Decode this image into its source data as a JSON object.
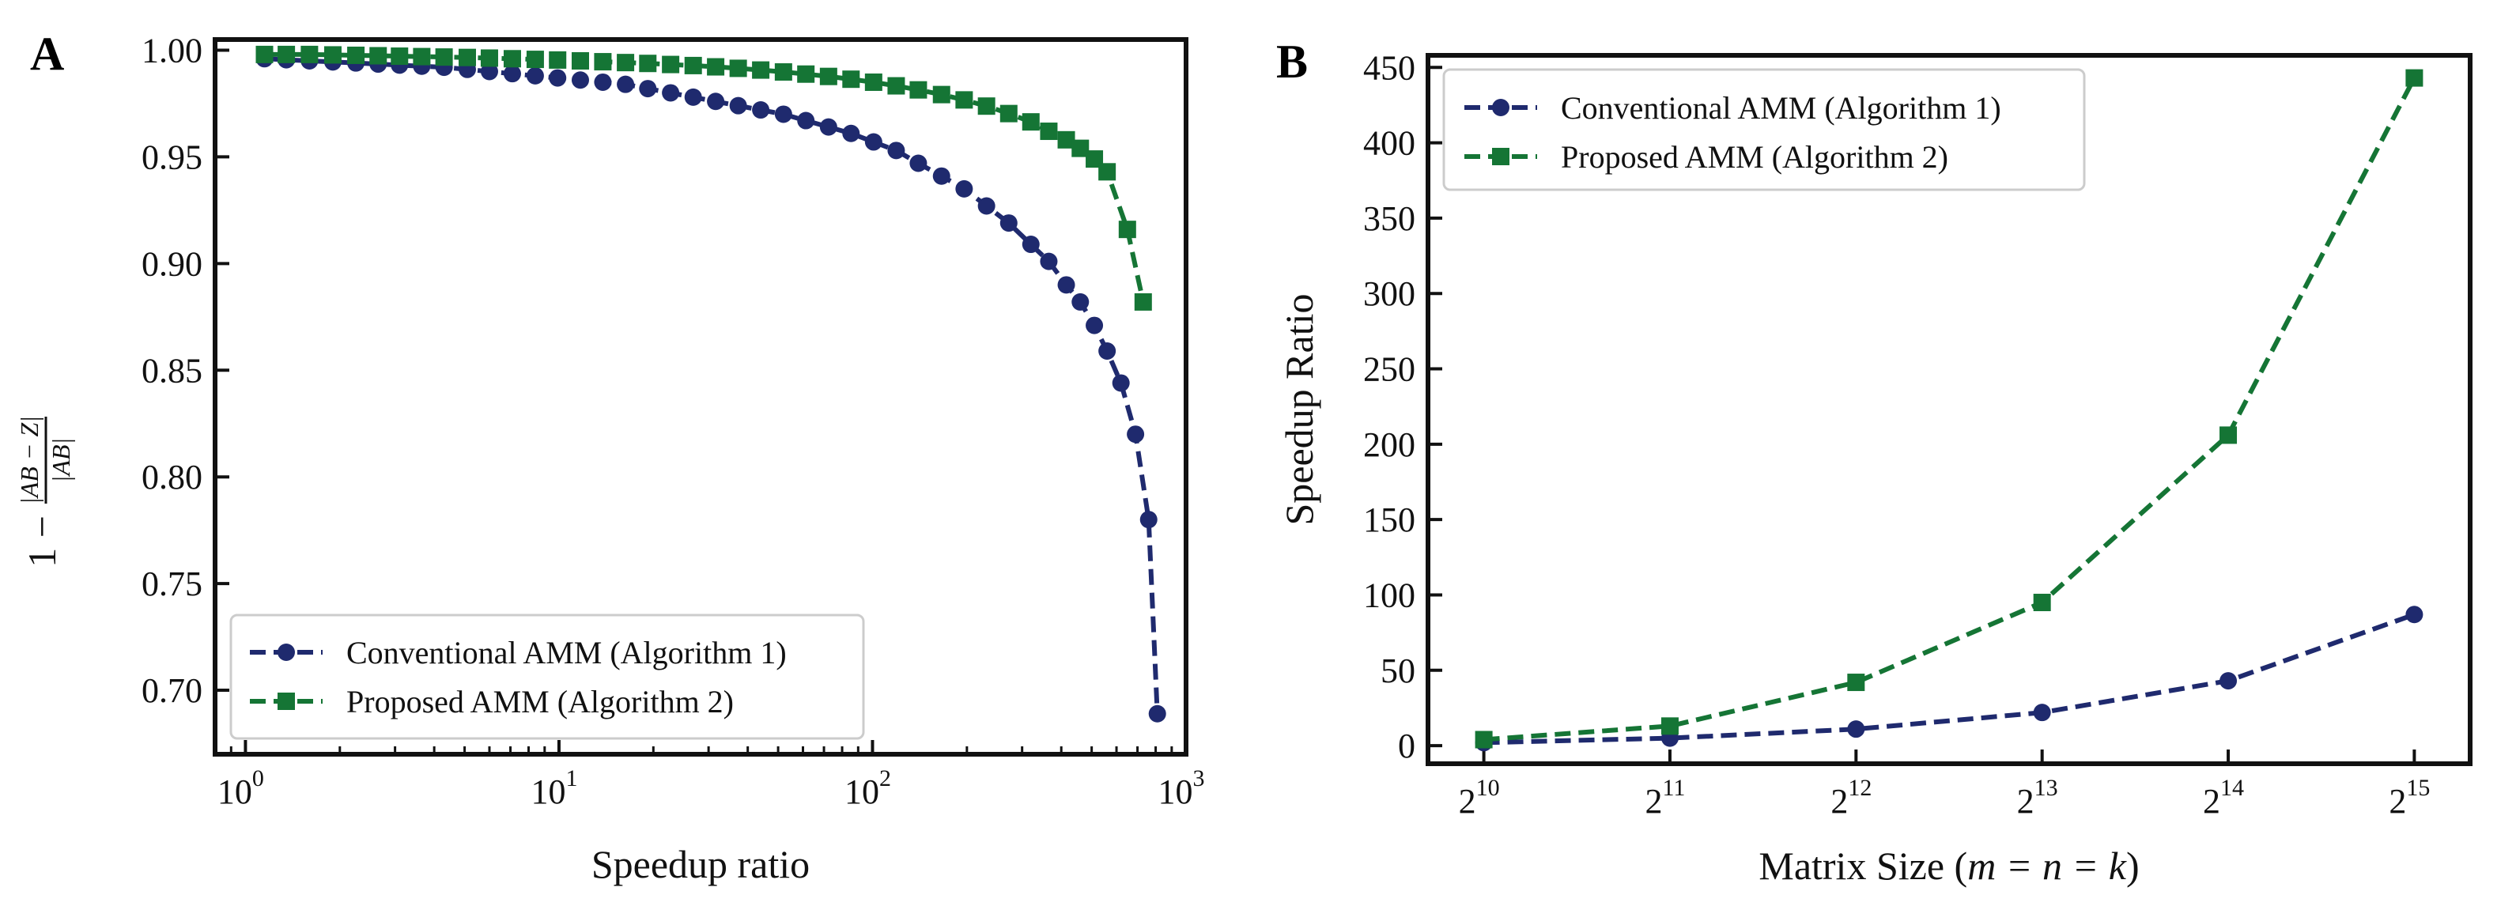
{
  "colors": {
    "conventional": "#1f2a6e",
    "proposed": "#157535",
    "axes": "#111111"
  },
  "chart_data": [
    {
      "panel": "A",
      "type": "line",
      "xscale": "log",
      "xlim": [
        0.8,
        1000
      ],
      "ylim": [
        0.67,
        1.005
      ],
      "x_ticks": [
        1,
        10,
        100,
        1000
      ],
      "x_tick_labels": [
        "10",
        "10",
        "10",
        "10"
      ],
      "x_tick_exponents": [
        "0",
        "1",
        "2",
        "3"
      ],
      "y_ticks": [
        0.7,
        0.75,
        0.8,
        0.85,
        0.9,
        0.95,
        1.0
      ],
      "y_tick_labels": [
        "0.70",
        "0.75",
        "0.80",
        "0.85",
        "0.90",
        "0.95",
        "1.00"
      ],
      "xlabel": "Speedup ratio",
      "ylabel_lead": "1 −",
      "ylabel_num": "|AB − Z|",
      "ylabel_den": "|AB|",
      "legend_position": "lower-left",
      "series": [
        {
          "name": "Conventional AMM (Algorithm 1)",
          "marker": "circle",
          "x": [
            1.15,
            1.35,
            1.6,
            1.9,
            2.25,
            2.65,
            3.1,
            3.65,
            4.3,
            5.1,
            6.0,
            7.1,
            8.4,
            9.9,
            11.7,
            13.8,
            16.3,
            19.2,
            22.7,
            26.8,
            31.6,
            37.3,
            44.0,
            52.0,
            61.3,
            72.4,
            85.4,
            100.8,
            119,
            140,
            166,
            196,
            231,
            272,
            320,
            365,
            415,
            460,
            510,
            560,
            620,
            690,
            760,
            810
          ],
          "y": [
            0.996,
            0.9955,
            0.995,
            0.9945,
            0.994,
            0.9935,
            0.993,
            0.9925,
            0.992,
            0.991,
            0.99,
            0.989,
            0.988,
            0.987,
            0.986,
            0.985,
            0.984,
            0.982,
            0.98,
            0.978,
            0.976,
            0.974,
            0.972,
            0.97,
            0.967,
            0.964,
            0.961,
            0.957,
            0.953,
            0.947,
            0.941,
            0.935,
            0.927,
            0.919,
            0.909,
            0.901,
            0.89,
            0.882,
            0.871,
            0.859,
            0.844,
            0.82,
            0.78,
            0.689
          ]
        },
        {
          "name": "Proposed AMM (Algorithm 2)",
          "marker": "square",
          "x": [
            1.15,
            1.35,
            1.6,
            1.9,
            2.25,
            2.65,
            3.1,
            3.65,
            4.3,
            5.1,
            6.0,
            7.1,
            8.4,
            9.9,
            11.7,
            13.8,
            16.3,
            19.2,
            22.7,
            26.8,
            31.6,
            37.3,
            44.0,
            52.0,
            61.3,
            72.4,
            85.4,
            100.8,
            119,
            140,
            166,
            196,
            231,
            272,
            320,
            365,
            415,
            460,
            510,
            560,
            650,
            730
          ],
          "y": [
            0.998,
            0.998,
            0.998,
            0.9978,
            0.9976,
            0.9974,
            0.9972,
            0.997,
            0.9968,
            0.9966,
            0.9963,
            0.996,
            0.9957,
            0.9954,
            0.995,
            0.9946,
            0.9942,
            0.9938,
            0.9933,
            0.9928,
            0.9922,
            0.9915,
            0.9907,
            0.9898,
            0.9888,
            0.9877,
            0.9864,
            0.985,
            0.9833,
            0.9814,
            0.9792,
            0.9767,
            0.9738,
            0.9703,
            0.9664,
            0.962,
            0.958,
            0.954,
            0.949,
            0.943,
            0.916,
            0.882
          ]
        }
      ]
    },
    {
      "panel": "B",
      "type": "line",
      "xlim": [
        9.7,
        15.3
      ],
      "ylim": [
        -12,
        458
      ],
      "x_ticks": [
        10,
        11,
        12,
        13,
        14,
        15
      ],
      "x_tick_labels": [
        "2",
        "2",
        "2",
        "2",
        "2",
        "2"
      ],
      "x_tick_exponents": [
        "10",
        "11",
        "12",
        "13",
        "14",
        "15"
      ],
      "y_ticks": [
        0,
        50,
        100,
        150,
        200,
        250,
        300,
        350,
        400,
        450
      ],
      "y_tick_labels": [
        "0",
        "50",
        "100",
        "150",
        "200",
        "250",
        "300",
        "350",
        "400",
        "450"
      ],
      "xlabel_prefix": "Matrix Size (",
      "xlabel_math": "m = n = k",
      "xlabel_suffix": ")",
      "ylabel": "Speedup Ratio",
      "legend_position": "top-left",
      "series": [
        {
          "name": "Conventional AMM (Algorithm 1)",
          "marker": "circle",
          "x": [
            10,
            11,
            12,
            13,
            14,
            15
          ],
          "y": [
            2,
            5,
            11,
            22,
            43,
            87
          ]
        },
        {
          "name": "Proposed AMM (Algorithm 2)",
          "marker": "square",
          "x": [
            10,
            11,
            12,
            13,
            14,
            15
          ],
          "y": [
            4,
            13,
            42,
            95,
            206,
            443
          ]
        }
      ]
    }
  ]
}
